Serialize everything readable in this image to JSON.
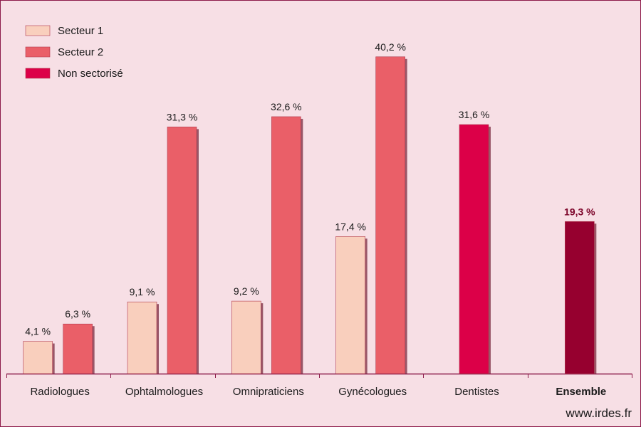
{
  "chart_data": {
    "type": "bar",
    "categories": [
      "Radiologues",
      "Ophtalmologues",
      "Omnipraticiens",
      "Gynécologues",
      "Dentistes",
      "Ensemble"
    ],
    "series": [
      {
        "name": "Secteur 1",
        "color": "#f9cfbd",
        "values": [
          4.1,
          9.1,
          9.2,
          17.4,
          null,
          null
        ],
        "labels": [
          "4,1 %",
          "9,1 %",
          "9,2 %",
          "17,4 %",
          null,
          null
        ]
      },
      {
        "name": "Secteur 2",
        "color": "#ea5f68",
        "values": [
          6.3,
          31.3,
          32.6,
          40.2,
          null,
          null
        ],
        "labels": [
          "6,3 %",
          "31,3 %",
          "32,6 %",
          "40,2 %",
          null,
          null
        ]
      },
      {
        "name": "Non sectorisé",
        "color": "#dc0048",
        "values": [
          null,
          null,
          null,
          null,
          31.6,
          null
        ],
        "labels": [
          null,
          null,
          null,
          null,
          "31,6 %",
          null
        ]
      }
    ],
    "ensemble": {
      "value": 19.3,
      "label": "19,3 %",
      "color": "#96002f"
    },
    "bold_categories": [
      "Ensemble"
    ],
    "ylim": [
      0,
      45
    ],
    "grid": false,
    "legend_position": "top-left"
  },
  "watermark": "www.irdes.fr"
}
